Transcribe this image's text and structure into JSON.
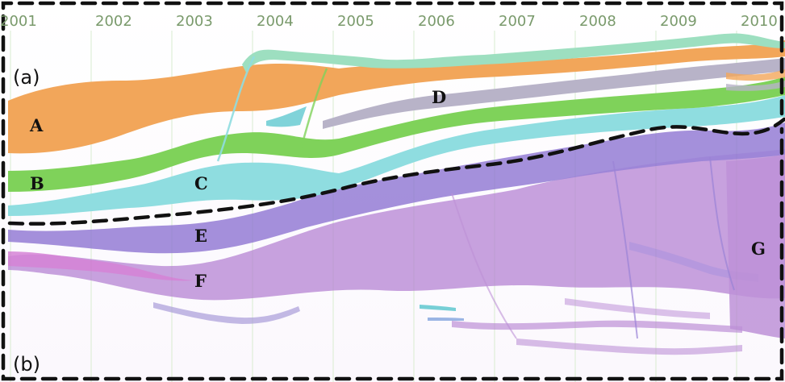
{
  "years": [
    "2001",
    "2002",
    "2003",
    "2004",
    "2005",
    "2006",
    "2007",
    "2008",
    "2009",
    "2010"
  ],
  "panels": {
    "top": "(a)",
    "bottom": "(b)"
  },
  "streams": {
    "A": "A",
    "B": "B",
    "C": "C",
    "D": "D",
    "E": "E",
    "F": "F",
    "G": "G"
  },
  "colors": {
    "orange": "#f2a65a",
    "green": "#7fd25a",
    "cyan": "#8fdde0",
    "mint": "#9ddfc0",
    "gray": "#b8b3c8",
    "purple": "#8a6fd0",
    "violet": "#b37fd1",
    "magenta": "#cf6fcf",
    "lavender": "#c49ae0"
  }
}
